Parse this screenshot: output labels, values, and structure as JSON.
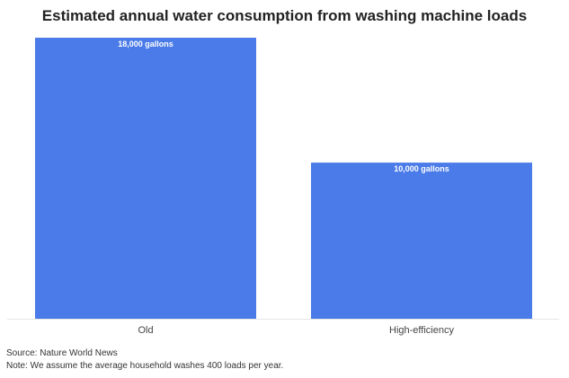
{
  "chart_data": {
    "type": "bar",
    "title": "Estimated annual water consumption from washing machine loads",
    "categories": [
      "Old",
      "High-efficiency"
    ],
    "values": [
      18000,
      10000
    ],
    "value_labels": [
      "18,000 gallons",
      "10,000 gallons"
    ],
    "xlabel": "",
    "ylabel": "",
    "ylim": [
      0,
      18000
    ],
    "grid": false,
    "bar_color": "#4a7be8"
  },
  "footer": {
    "source": "Source: Nature World News",
    "note": "Note: We assume the average household washes 400 loads per year."
  }
}
